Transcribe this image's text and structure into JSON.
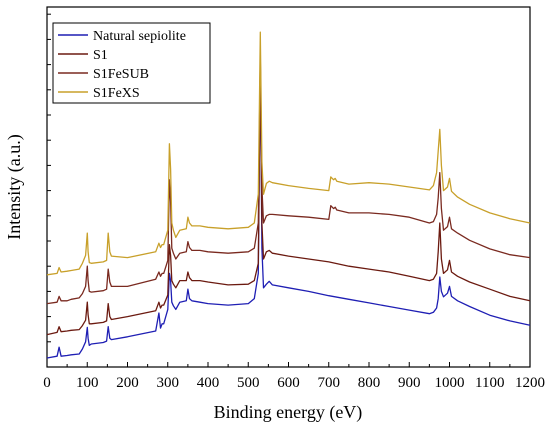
{
  "chart_data": {
    "type": "line",
    "title": "",
    "xlabel": "Binding energy (eV)",
    "ylabel": "Intensity (a.u.)",
    "xlim": [
      0,
      1200
    ],
    "ylim": [
      0,
      100
    ],
    "x_ticks": [
      0,
      100,
      200,
      300,
      400,
      500,
      600,
      700,
      800,
      900,
      1000,
      1100,
      1200
    ],
    "y_ticks_labeled": false,
    "grid": false,
    "legend_position": "top-left",
    "series": [
      {
        "name": "Natural sepiolite",
        "color": "#1f1fb4",
        "x": [
          0,
          25,
          30,
          35,
          50,
          60,
          80,
          88,
          96,
          100,
          102,
          105,
          110,
          140,
          148,
          152,
          156,
          160,
          200,
          270,
          278,
          282,
          286,
          290,
          300,
          304,
          307,
          310,
          314,
          320,
          330,
          346,
          350,
          354,
          360,
          380,
          400,
          450,
          500,
          515,
          525,
          530,
          534,
          538,
          545,
          552,
          560,
          600,
          650,
          700,
          750,
          800,
          850,
          900,
          950,
          960,
          968,
          972,
          976,
          980,
          985,
          995,
          1000,
          1005,
          1020,
          1050,
          1100,
          1150,
          1200
        ],
        "values": [
          2.5,
          3.0,
          5.5,
          3.0,
          3.2,
          3.4,
          3.6,
          5.0,
          7.0,
          11.0,
          8.0,
          6.0,
          6.4,
          6.8,
          7.2,
          11.2,
          8.0,
          7.6,
          8.4,
          10.0,
          15.0,
          10.8,
          12.0,
          12.0,
          16.0,
          26.0,
          24.0,
          18.0,
          17.0,
          16.0,
          18.0,
          18.4,
          21.6,
          19.0,
          18.4,
          18.0,
          17.6,
          17.2,
          17.6,
          19.0,
          26.0,
          84.0,
          33.0,
          22.0,
          23.0,
          23.8,
          22.8,
          22.0,
          21.0,
          19.8,
          18.8,
          17.8,
          16.8,
          15.8,
          14.8,
          15.2,
          16.4,
          19.0,
          25.0,
          21.0,
          19.5,
          20.5,
          22.4,
          19.6,
          18.4,
          16.8,
          14.4,
          12.8,
          11.6
        ]
      },
      {
        "name": "S1",
        "color": "#6b1a10",
        "x": [
          0,
          25,
          30,
          35,
          50,
          60,
          80,
          88,
          96,
          100,
          102,
          105,
          110,
          140,
          148,
          152,
          156,
          160,
          200,
          270,
          278,
          282,
          286,
          290,
          300,
          304,
          307,
          310,
          314,
          320,
          330,
          346,
          350,
          354,
          360,
          380,
          400,
          450,
          500,
          515,
          525,
          530,
          534,
          538,
          545,
          552,
          560,
          600,
          650,
          700,
          750,
          800,
          850,
          900,
          950,
          960,
          968,
          972,
          976,
          980,
          985,
          995,
          1000,
          1005,
          1020,
          1050,
          1100,
          1150,
          1200
        ],
        "values": [
          9.0,
          9.6,
          11.2,
          9.8,
          10.0,
          10.2,
          10.4,
          11.5,
          13.0,
          18.0,
          14.5,
          12.0,
          12.0,
          12.4,
          12.8,
          17.6,
          14.0,
          13.2,
          14.0,
          15.6,
          18.0,
          16.4,
          17.2,
          17.2,
          20.0,
          34.0,
          31.0,
          24.0,
          23.0,
          22.0,
          24.0,
          24.0,
          26.4,
          24.8,
          24.0,
          24.0,
          23.6,
          22.8,
          23.0,
          24.0,
          28.8,
          85.0,
          40.0,
          30.0,
          32.0,
          32.4,
          31.6,
          30.8,
          30.0,
          29.2,
          28.0,
          27.2,
          26.4,
          25.2,
          24.0,
          24.4,
          26.0,
          32.0,
          40.0,
          30.0,
          26.0,
          27.0,
          29.6,
          26.4,
          25.2,
          23.6,
          21.6,
          19.6,
          18.4
        ]
      },
      {
        "name": "S1FeSUB",
        "color": "#7a2a20",
        "x": [
          0,
          25,
          30,
          35,
          50,
          60,
          80,
          88,
          96,
          100,
          102,
          105,
          110,
          140,
          148,
          152,
          156,
          160,
          200,
          270,
          278,
          282,
          286,
          290,
          300,
          304,
          307,
          310,
          314,
          320,
          330,
          346,
          350,
          354,
          360,
          380,
          400,
          450,
          500,
          515,
          525,
          530,
          534,
          538,
          545,
          552,
          560,
          600,
          650,
          700,
          705,
          712,
          716,
          720,
          750,
          800,
          850,
          900,
          950,
          960,
          968,
          972,
          976,
          980,
          985,
          995,
          1000,
          1005,
          1020,
          1050,
          1100,
          1150,
          1200
        ],
        "values": [
          17.6,
          18.0,
          19.6,
          18.4,
          18.4,
          18.8,
          19.2,
          20.4,
          22.4,
          28.0,
          24.0,
          21.0,
          20.8,
          21.2,
          21.6,
          27.2,
          23.6,
          22.4,
          22.4,
          24.4,
          26.4,
          25.2,
          26.0,
          26.0,
          29.6,
          52.0,
          46.0,
          33.0,
          31.6,
          30.0,
          31.6,
          32.0,
          34.8,
          33.2,
          32.4,
          32.4,
          32.0,
          31.6,
          32.0,
          33.0,
          40.0,
          86.0,
          50.0,
          40.0,
          42.0,
          42.4,
          42.4,
          42.0,
          41.6,
          41.0,
          44.8,
          44.0,
          44.4,
          43.6,
          42.8,
          42.8,
          42.4,
          41.6,
          40.0,
          40.4,
          42.4,
          47.0,
          54.0,
          44.0,
          38.0,
          39.0,
          41.6,
          38.4,
          37.2,
          35.2,
          32.8,
          31.2,
          30.4
        ]
      },
      {
        "name": "S1FeXS",
        "color": "#c8a02a",
        "x": [
          0,
          25,
          30,
          35,
          50,
          60,
          80,
          88,
          96,
          100,
          102,
          105,
          110,
          140,
          148,
          152,
          156,
          160,
          200,
          270,
          278,
          282,
          286,
          290,
          300,
          304,
          307,
          310,
          314,
          320,
          330,
          346,
          350,
          354,
          360,
          380,
          400,
          450,
          500,
          515,
          525,
          530,
          534,
          538,
          545,
          552,
          560,
          600,
          650,
          700,
          705,
          712,
          716,
          720,
          750,
          800,
          850,
          900,
          950,
          960,
          968,
          972,
          976,
          980,
          985,
          995,
          1000,
          1005,
          1020,
          1050,
          1100,
          1150,
          1200
        ],
        "values": [
          25.6,
          26.0,
          27.6,
          26.4,
          26.6,
          26.8,
          27.2,
          28.8,
          31.0,
          37.2,
          32.0,
          29.0,
          28.8,
          29.2,
          29.6,
          37.2,
          32.0,
          30.8,
          30.4,
          32.0,
          34.4,
          33.2,
          34.0,
          34.0,
          38.0,
          62.0,
          55.0,
          40.0,
          38.0,
          36.0,
          38.0,
          38.4,
          41.6,
          40.0,
          39.2,
          39.2,
          38.8,
          38.4,
          38.8,
          40.0,
          48.0,
          93.0,
          57.0,
          48.0,
          51.0,
          51.6,
          51.2,
          50.4,
          49.6,
          49.0,
          52.8,
          52.0,
          52.4,
          51.6,
          50.8,
          51.2,
          50.8,
          50.0,
          49.2,
          50.4,
          54.0,
          60.0,
          66.0,
          56.0,
          49.0,
          50.0,
          52.4,
          48.8,
          47.2,
          45.2,
          42.8,
          41.2,
          40.0
        ]
      }
    ]
  }
}
